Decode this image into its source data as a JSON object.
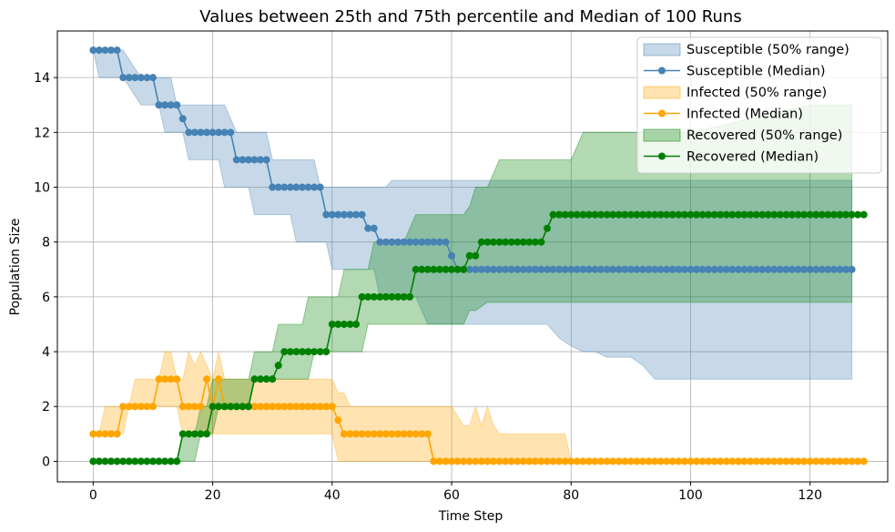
{
  "chart_data": {
    "type": "area",
    "title": "Values between 25th and 75th percentile and Median of 100 Runs",
    "xlabel": "Time Step",
    "ylabel": "Population Size",
    "xlim": [
      -6,
      133
    ],
    "ylim": [
      -0.75,
      15.7
    ],
    "xticks": [
      0,
      20,
      40,
      60,
      80,
      100,
      120
    ],
    "yticks": [
      0,
      2,
      4,
      6,
      8,
      10,
      12,
      14
    ],
    "grid": true,
    "legend_position": "top-right",
    "colors": {
      "susceptible": "#4682b4",
      "infected": "#ffa500",
      "recovered": "#008000"
    },
    "bands": [
      {
        "name": "Susceptible (50% range)",
        "color": "#4682b4",
        "opacity": 0.3,
        "x": [
          0,
          1,
          2,
          3,
          4,
          5,
          8,
          10,
          11,
          12,
          13,
          14,
          15,
          16,
          18,
          20,
          21,
          22,
          24,
          26,
          27,
          28,
          29,
          30,
          33,
          34,
          36,
          37,
          38,
          39,
          40,
          41,
          42,
          44,
          46,
          47,
          48,
          49,
          50,
          52,
          54,
          56,
          58,
          59,
          60,
          61,
          62,
          63,
          64,
          65,
          66,
          68,
          70,
          72,
          74,
          75,
          76,
          78,
          80,
          82,
          84,
          86,
          88,
          90,
          92,
          94,
          96,
          98,
          100,
          110,
          120,
          127
        ],
        "low": [
          15,
          14,
          14,
          14,
          14,
          14,
          13,
          13,
          13,
          12,
          12,
          12,
          12,
          11,
          11,
          11,
          11,
          10,
          10,
          10,
          9,
          9,
          9,
          9,
          9,
          8,
          8,
          8,
          8,
          8,
          7,
          7,
          7,
          7,
          7,
          7,
          6,
          6,
          6,
          6,
          6,
          5,
          5,
          5,
          5,
          5,
          5,
          5,
          5,
          5,
          5,
          5,
          5,
          5,
          5,
          5,
          5,
          4.5,
          4.2,
          4,
          4,
          3.8,
          3.8,
          3.8,
          3.5,
          3,
          3,
          3,
          3,
          3,
          3,
          3
        ],
        "high": [
          15,
          15,
          15,
          15,
          15,
          15,
          14,
          14,
          14,
          14,
          14,
          13,
          13,
          13,
          13,
          13,
          13,
          13,
          12,
          12,
          12,
          12,
          12,
          11,
          11,
          11,
          11,
          11,
          10,
          10,
          10,
          10,
          10,
          10,
          10,
          10,
          10,
          10,
          10.25,
          10.25,
          10.25,
          10.25,
          10.25,
          10.25,
          10.25,
          10.25,
          10.25,
          10.25,
          10.25,
          10.25,
          10.25,
          10.25,
          10.25,
          10.25,
          10.25,
          10.25,
          10.25,
          10.25,
          10.25,
          10.25,
          10.25,
          10.25,
          10.25,
          10.25,
          10.25,
          10.25,
          10.25,
          10.25,
          10.25,
          10.25,
          10.25,
          10.25
        ]
      },
      {
        "name": "Infected (50% range)",
        "color": "#ffa500",
        "opacity": 0.3,
        "x": [
          0,
          1,
          2,
          4,
          5,
          6,
          7,
          10,
          11,
          12,
          13,
          14,
          15,
          16,
          17,
          18,
          19,
          20,
          21,
          22,
          25,
          26,
          30,
          35,
          40,
          41,
          42,
          43,
          44,
          50,
          53,
          54,
          55,
          60,
          62,
          63,
          64,
          65,
          66,
          67,
          68,
          70,
          75,
          79,
          80,
          81,
          127
        ],
        "low": [
          1,
          1,
          1,
          1,
          1,
          2,
          2,
          2,
          2,
          2,
          2,
          2,
          1,
          1,
          1,
          1,
          1,
          1,
          1,
          1,
          1,
          1,
          1,
          1,
          1,
          0,
          0,
          0,
          0,
          0,
          0,
          0,
          0,
          0,
          0,
          0,
          0,
          0,
          0,
          0,
          0,
          0,
          0,
          0,
          0,
          0,
          0
        ],
        "high": [
          1,
          1,
          2,
          2,
          2,
          2,
          3,
          3,
          3,
          4,
          4,
          3,
          3,
          4,
          3.5,
          4,
          3.5,
          3,
          4,
          3,
          3,
          3,
          3,
          3,
          3,
          2.5,
          2.5,
          2,
          2,
          2,
          2,
          2,
          2,
          2,
          1.3,
          1.3,
          2,
          1.3,
          2,
          1.3,
          1,
          1,
          1,
          1,
          0,
          0,
          0
        ]
      },
      {
        "name": "Recovered (50% range)",
        "color": "#008000",
        "opacity": 0.3,
        "x": [
          0,
          14,
          15,
          16,
          17,
          18,
          19,
          20,
          21,
          22,
          23,
          24,
          25,
          26,
          27,
          28,
          29,
          30,
          31,
          32,
          33,
          34,
          35,
          36,
          37,
          38,
          39,
          40,
          41,
          42,
          43,
          44,
          45,
          46,
          47,
          48,
          50,
          52,
          54,
          55,
          56,
          58,
          60,
          62,
          63,
          64,
          66,
          68,
          70,
          72,
          74,
          76,
          78,
          80,
          81,
          82,
          84,
          90,
          100,
          110,
          120,
          127
        ],
        "low": [
          0,
          0,
          0,
          0,
          0,
          1,
          1,
          1,
          2,
          2,
          2,
          2,
          2,
          2,
          3,
          3,
          3,
          3,
          3,
          3,
          3,
          3,
          3,
          3,
          4,
          4,
          4,
          4,
          4,
          4,
          4,
          4,
          4,
          5,
          5,
          5,
          5,
          5,
          5,
          5,
          5,
          5,
          5,
          5,
          5.5,
          5.5,
          5.8,
          5.8,
          5.8,
          5.8,
          5.8,
          5.8,
          5.8,
          5.8,
          5.8,
          5.8,
          5.8,
          5.8,
          5.8,
          5.8,
          5.8,
          5.8
        ],
        "high": [
          0,
          0,
          1,
          1,
          1,
          2,
          2,
          3,
          3,
          3,
          3,
          3,
          3,
          3,
          4,
          4,
          4,
          4,
          5,
          5,
          5,
          5,
          5,
          6,
          6,
          6,
          6,
          6,
          6,
          7,
          7,
          7,
          7,
          7,
          8,
          8,
          8,
          8,
          9,
          9,
          9,
          9,
          9,
          9,
          9.3,
          10,
          10,
          11,
          11,
          11,
          11,
          11,
          11,
          11,
          11.5,
          12,
          12,
          12,
          12,
          12.5,
          13,
          13
        ]
      }
    ],
    "series": [
      {
        "name": "Susceptible (Median)",
        "color": "#4682b4",
        "values": [
          15,
          15,
          15,
          15,
          15,
          14,
          14,
          14,
          14,
          14,
          14,
          13,
          13,
          13,
          13,
          12.5,
          12,
          12,
          12,
          12,
          12,
          12,
          12,
          12,
          11,
          11,
          11,
          11,
          11,
          11,
          10,
          10,
          10,
          10,
          10,
          10,
          10,
          10,
          10,
          9,
          9,
          9,
          9,
          9,
          9,
          9,
          8.5,
          8.5,
          8,
          8,
          8,
          8,
          8,
          8,
          8,
          8,
          8,
          8,
          8,
          8,
          7.5,
          7,
          7,
          7,
          7,
          7,
          7,
          7,
          7,
          7,
          7,
          7,
          7,
          7,
          7,
          7,
          7,
          7,
          7,
          7,
          7,
          7,
          7,
          7,
          7,
          7,
          7,
          7,
          7,
          7,
          7,
          7,
          7,
          7,
          7,
          7,
          7,
          7,
          7,
          7,
          7,
          7,
          7,
          7,
          7,
          7,
          7,
          7,
          7,
          7,
          7,
          7,
          7,
          7,
          7,
          7,
          7,
          7,
          7,
          7,
          7,
          7,
          7,
          7,
          7,
          7,
          7,
          7
        ]
      },
      {
        "name": "Infected (Median)",
        "color": "#ffa500",
        "values": [
          1,
          1,
          1,
          1,
          1,
          2,
          2,
          2,
          2,
          2,
          2,
          3,
          3,
          3,
          3,
          2,
          2,
          2,
          2,
          3,
          2,
          3,
          2,
          2,
          2,
          2,
          2,
          2,
          2,
          2,
          2,
          2,
          2,
          2,
          2,
          2,
          2,
          2,
          2,
          2,
          2,
          1.5,
          1,
          1,
          1,
          1,
          1,
          1,
          1,
          1,
          1,
          1,
          1,
          1,
          1,
          1,
          1,
          0,
          0,
          0,
          0,
          0,
          0,
          0,
          0,
          0,
          0,
          0,
          0,
          0,
          0,
          0,
          0,
          0,
          0,
          0,
          0,
          0,
          0,
          0,
          0,
          0,
          0,
          0,
          0,
          0,
          0,
          0,
          0,
          0,
          0,
          0,
          0,
          0,
          0,
          0,
          0,
          0,
          0,
          0,
          0,
          0,
          0,
          0,
          0,
          0,
          0,
          0,
          0,
          0,
          0,
          0,
          0,
          0,
          0,
          0,
          0,
          0,
          0,
          0,
          0,
          0,
          0,
          0,
          0,
          0,
          0,
          0,
          0,
          0
        ]
      },
      {
        "name": "Recovered (Median)",
        "color": "#008000",
        "values": [
          0,
          0,
          0,
          0,
          0,
          0,
          0,
          0,
          0,
          0,
          0,
          0,
          0,
          0,
          0,
          1,
          1,
          1,
          1,
          1,
          2,
          2,
          2,
          2,
          2,
          2,
          2,
          3,
          3,
          3,
          3,
          3.5,
          4,
          4,
          4,
          4,
          4,
          4,
          4,
          4,
          5,
          5,
          5,
          5,
          5,
          6,
          6,
          6,
          6,
          6,
          6,
          6,
          6,
          6,
          7,
          7,
          7,
          7,
          7,
          7,
          7,
          7,
          7,
          7.5,
          7.5,
          8,
          8,
          8,
          8,
          8,
          8,
          8,
          8,
          8,
          8,
          8,
          8.5,
          9,
          9,
          9,
          9,
          9,
          9,
          9,
          9,
          9,
          9,
          9,
          9,
          9,
          9,
          9,
          9,
          9,
          9,
          9,
          9,
          9,
          9,
          9,
          9,
          9,
          9,
          9,
          9,
          9,
          9,
          9,
          9,
          9,
          9,
          9,
          9,
          9,
          9,
          9,
          9,
          9,
          9,
          9,
          9,
          9,
          9,
          9,
          9,
          9,
          9,
          9,
          9,
          9
        ]
      }
    ],
    "legend": [
      {
        "label": "Susceptible (50% range)",
        "kind": "band",
        "color": "#4682b4"
      },
      {
        "label": "Susceptible (Median)",
        "kind": "line",
        "color": "#4682b4"
      },
      {
        "label": "Infected (50% range)",
        "kind": "band",
        "color": "#ffa500"
      },
      {
        "label": "Infected (Median)",
        "kind": "line",
        "color": "#ffa500"
      },
      {
        "label": "Recovered (50% range)",
        "kind": "band",
        "color": "#008000"
      },
      {
        "label": "Recovered (Median)",
        "kind": "line",
        "color": "#008000"
      }
    ]
  }
}
